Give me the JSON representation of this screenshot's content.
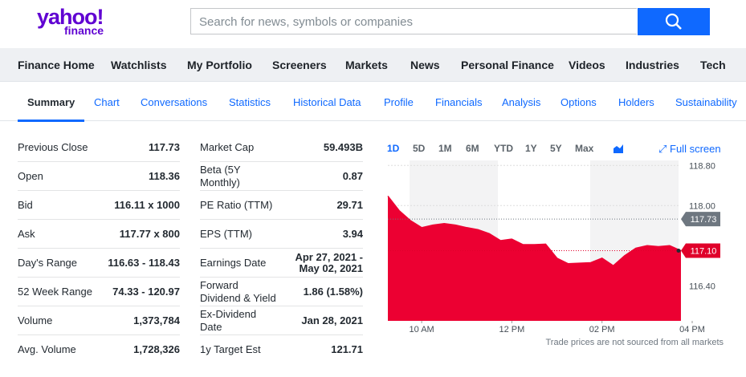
{
  "header": {
    "logo": "yahoo!",
    "logo_sub": "finance",
    "search_placeholder": "Search for news, symbols or companies"
  },
  "nav": [
    "Finance Home",
    "Watchlists",
    "My Portfolio",
    "Screeners",
    "Markets",
    "News",
    "Personal Finance",
    "Videos",
    "Industries",
    "Tech"
  ],
  "tabs": [
    "Summary",
    "Chart",
    "Conversations",
    "Statistics",
    "Historical Data",
    "Profile",
    "Financials",
    "Analysis",
    "Options",
    "Holders",
    "Sustainability"
  ],
  "summary_left": [
    [
      "Previous Close",
      "117.73"
    ],
    [
      "Open",
      "118.36"
    ],
    [
      "Bid",
      "116.11 x 1000"
    ],
    [
      "Ask",
      "117.77 x 800"
    ],
    [
      "Day's Range",
      "116.63 - 118.43"
    ],
    [
      "52 Week Range",
      "74.33 - 120.97"
    ],
    [
      "Volume",
      "1,373,784"
    ],
    [
      "Avg. Volume",
      "1,728,326"
    ]
  ],
  "summary_right": [
    [
      "Market Cap",
      "59.493B"
    ],
    [
      "Beta (5Y Monthly)",
      "0.87"
    ],
    [
      "PE Ratio (TTM)",
      "29.71"
    ],
    [
      "EPS (TTM)",
      "3.94"
    ],
    [
      "Earnings Date",
      "Apr 27, 2021 - May 02, 2021"
    ],
    [
      "Forward Dividend & Yield",
      "1.86 (1.58%)"
    ],
    [
      "Ex-Dividend Date",
      "Jan 28, 2021"
    ],
    [
      "1y Target Est",
      "121.71"
    ]
  ],
  "chart_controls": {
    "ranges": [
      "1D",
      "5D",
      "1M",
      "6M",
      "YTD",
      "1Y",
      "5Y",
      "Max"
    ],
    "full_screen": "Full screen"
  },
  "chart_data": {
    "type": "area",
    "color": "#ec0032",
    "x": [
      9.25,
      9.5,
      9.75,
      10,
      10.25,
      10.5,
      10.75,
      11,
      11.25,
      11.5,
      11.75,
      12,
      12.25,
      12.5,
      12.75,
      13,
      13.25,
      13.5,
      13.75,
      14,
      14.25,
      14.5,
      14.75,
      15,
      15.25,
      15.5,
      15.75
    ],
    "values": [
      118.19,
      117.9,
      117.7,
      117.56,
      117.61,
      117.64,
      117.61,
      117.56,
      117.52,
      117.44,
      117.3,
      117.33,
      117.22,
      117.22,
      117.23,
      116.95,
      116.84,
      116.85,
      116.86,
      116.95,
      116.8,
      117.0,
      117.15,
      117.2,
      117.18,
      117.2,
      117.1
    ],
    "xlim": [
      9.25,
      16
    ],
    "ylim": [
      115.7,
      118.9
    ],
    "xticks": [
      {
        "value": 10,
        "label": "10 AM"
      },
      {
        "value": 12,
        "label": "12 PM"
      },
      {
        "value": 14,
        "label": "02 PM"
      },
      {
        "value": 16,
        "label": "04 PM"
      }
    ],
    "yticks": [
      {
        "value": 116.4,
        "label": "116.40"
      },
      {
        "value": 118,
        "label": "118.00"
      },
      {
        "value": 118.8,
        "label": "118.80"
      }
    ],
    "grid": true,
    "markers": [
      {
        "value": 117.73,
        "label": "117.73",
        "color": "#6e7780"
      },
      {
        "value": 117.1,
        "label": "117.10",
        "color": "#e0002a"
      }
    ],
    "note": "Trade prices are not sourced from all markets"
  }
}
